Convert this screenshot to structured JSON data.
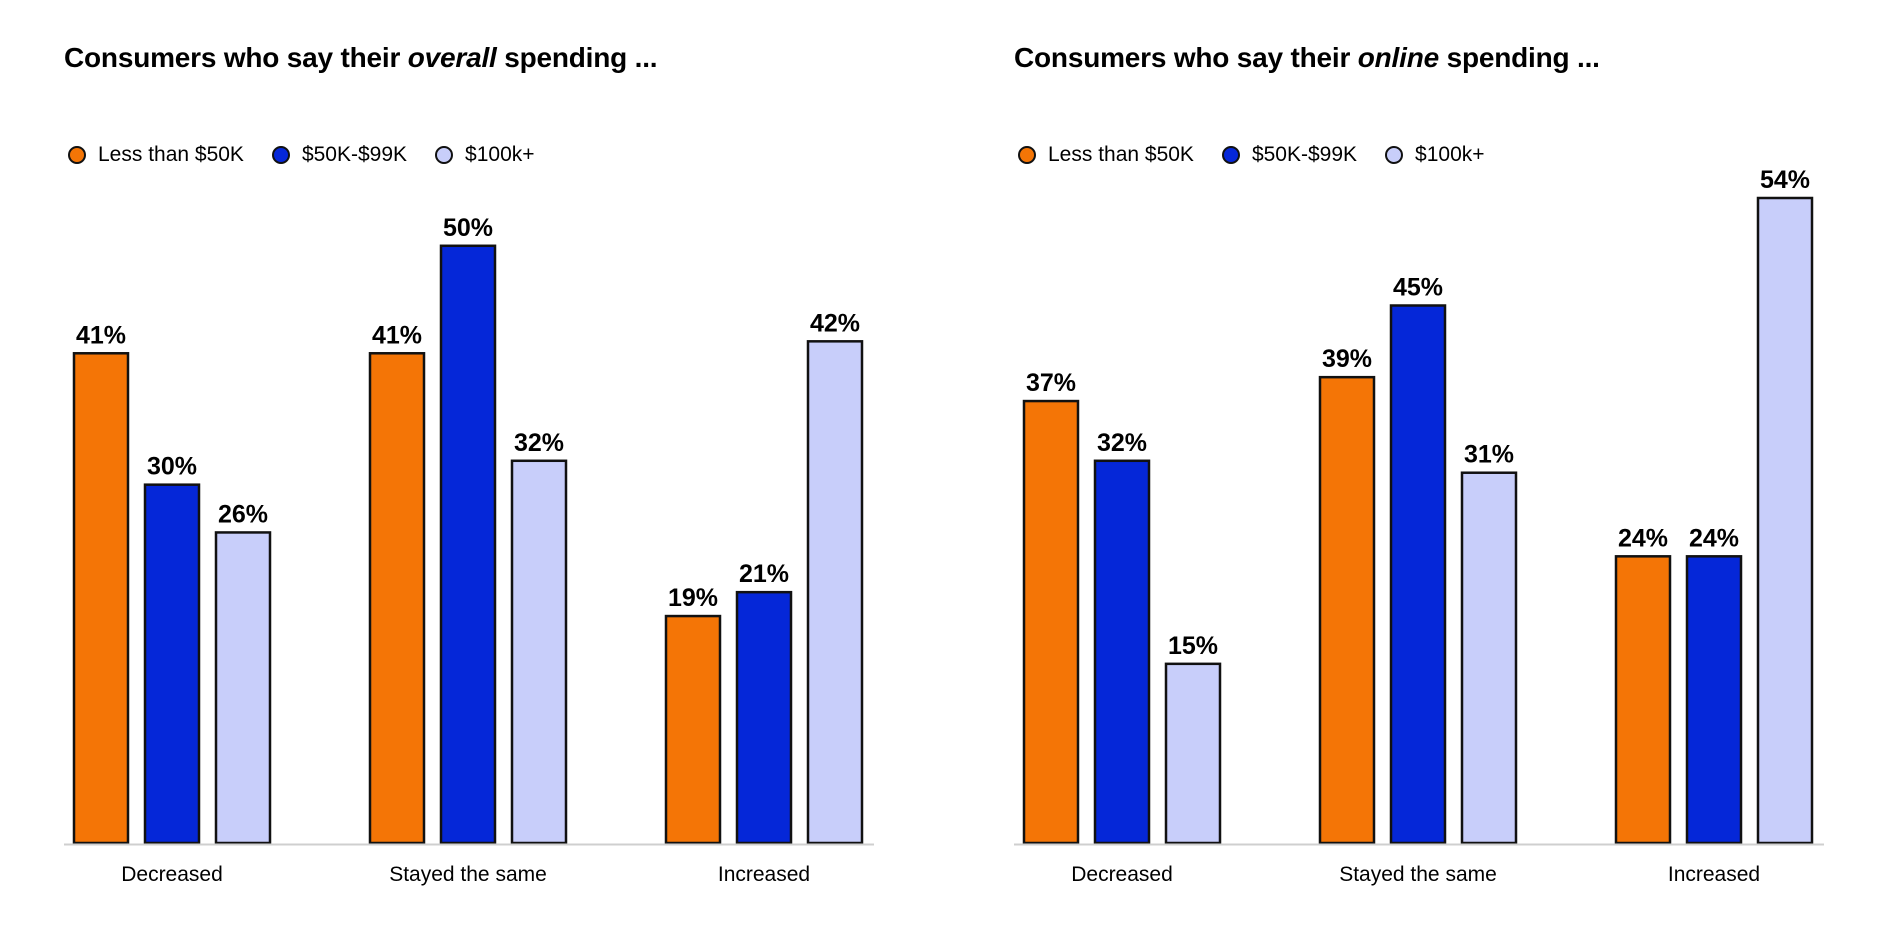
{
  "chart_data": [
    {
      "type": "bar",
      "title_prefix": "Consumers who say their ",
      "title_emph": "overall",
      "title_suffix": " spending ...",
      "categories": [
        "Decreased",
        "Stayed the same",
        "Increased"
      ],
      "series": [
        {
          "name": "Less than $50K",
          "color": "#F47506",
          "values": [
            41,
            41,
            19
          ]
        },
        {
          "name": "$50K-$99K",
          "color": "#0527D8",
          "values": [
            30,
            50,
            21
          ]
        },
        {
          "name": "$100k+",
          "color": "#C8CEFA",
          "values": [
            26,
            32,
            42
          ]
        }
      ],
      "value_suffix": "%",
      "ylim": [
        0,
        54
      ],
      "legend": "top-left",
      "grid": false
    },
    {
      "type": "bar",
      "title_prefix": "Consumers who say their ",
      "title_emph": "online",
      "title_suffix": " spending ...",
      "categories": [
        "Decreased",
        "Stayed the same",
        "Increased"
      ],
      "series": [
        {
          "name": "Less than $50K",
          "color": "#F47506",
          "values": [
            37,
            39,
            24
          ]
        },
        {
          "name": "$50K-$99K",
          "color": "#0527D8",
          "values": [
            32,
            45,
            24
          ]
        },
        {
          "name": "$100k+",
          "color": "#C8CEFA",
          "values": [
            15,
            31,
            54
          ]
        }
      ],
      "value_suffix": "%",
      "ylim": [
        0,
        54
      ],
      "legend": "top-left",
      "grid": false
    }
  ]
}
